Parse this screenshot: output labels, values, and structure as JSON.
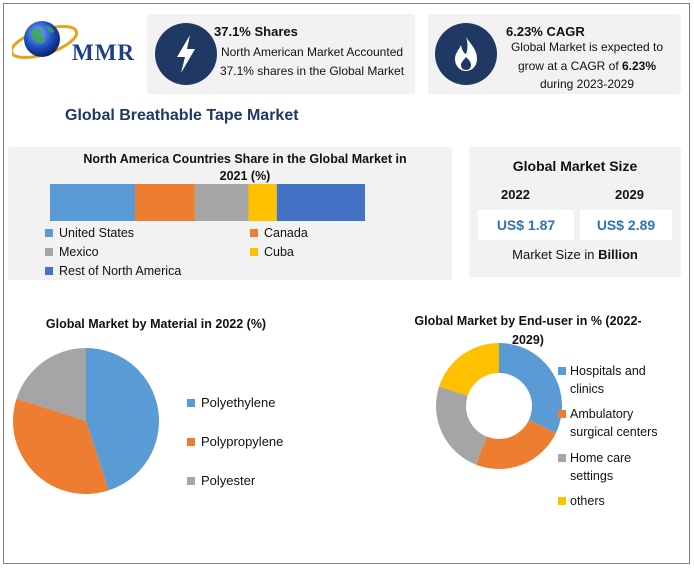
{
  "brand": {
    "name": "MMR"
  },
  "cards": [
    {
      "title": "37.1% Shares",
      "line1": "North American Market Accounted",
      "line2": "37.1% shares in the Global Market",
      "icon": "lightning-icon"
    },
    {
      "title": "6.23% CAGR",
      "line1": "Global Market is expected to",
      "line2a": "grow at a CAGR of ",
      "line2b": "6.23%",
      "line3": "during 2023-2029",
      "icon": "flame-icon"
    }
  ],
  "main_title": "Global Breathable Tape Market",
  "colors": {
    "blue": "#5b9bd5",
    "orange": "#ed7d31",
    "gray": "#a5a5a5",
    "yellow": "#ffc000",
    "darkblue": "#4472c4",
    "navy": "#1f3864"
  },
  "market_size": {
    "title": "Global Market Size",
    "years": [
      "2022",
      "2029"
    ],
    "values": [
      "US$ 1.87",
      "US$ 2.89"
    ],
    "note_prefix": "Market Size in ",
    "note_bold": "Billion"
  },
  "chart_data": [
    {
      "type": "bar",
      "stacked": true,
      "orientation": "horizontal",
      "title": "North America Countries Share in the Global Market in 2021 (%)",
      "series": [
        {
          "name": "United States",
          "values": [
            27
          ],
          "color": "#5b9bd5"
        },
        {
          "name": "Canada",
          "values": [
            19
          ],
          "color": "#ed7d31"
        },
        {
          "name": "Mexico",
          "values": [
            17
          ],
          "color": "#a5a5a5"
        },
        {
          "name": "Cuba",
          "values": [
            9
          ],
          "color": "#ffc000"
        },
        {
          "name": "Rest of North America",
          "values": [
            28
          ],
          "color": "#4472c4"
        }
      ]
    },
    {
      "type": "pie",
      "title": "Global Market by Material in 2022 (%)",
      "categories": [
        "Polyethylene",
        "Polypropylene",
        "Polyester"
      ],
      "values": [
        45,
        35,
        20
      ],
      "colors": [
        "#5b9bd5",
        "#ed7d31",
        "#a5a5a5"
      ]
    },
    {
      "type": "pie",
      "donut": true,
      "title": "Global Market by End-user in % (2022-2029)",
      "categories": [
        "Hospitals and clinics",
        "Ambulatory surgical centers",
        "Home care settings",
        "others"
      ],
      "legend_lines": [
        [
          "Hospitals and",
          "clinics"
        ],
        [
          "Ambulatory",
          "surgical centers"
        ],
        [
          "Home care",
          "settings"
        ],
        [
          "others"
        ]
      ],
      "values": [
        32,
        24,
        24,
        20
      ],
      "colors": [
        "#5b9bd5",
        "#ed7d31",
        "#a5a5a5",
        "#ffc000"
      ]
    }
  ]
}
